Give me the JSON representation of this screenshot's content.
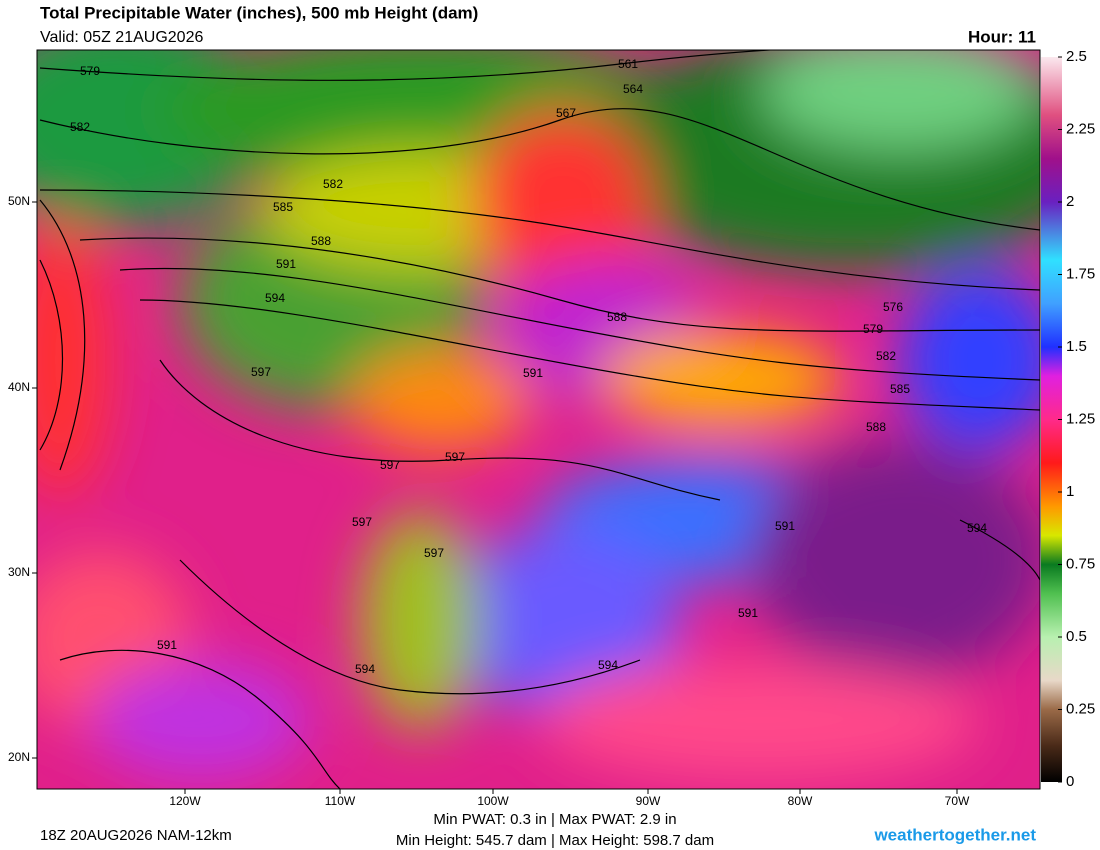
{
  "header": {
    "title": "Total Precipitable Water (inches), 500 mb Height (dam)",
    "valid": "Valid: 05Z 21AUG2026",
    "hour": "Hour: 11"
  },
  "colorbar": {
    "ticks": [
      0,
      0.25,
      0.5,
      0.75,
      1,
      1.25,
      1.5,
      1.75,
      2,
      2.25,
      2.5
    ]
  },
  "longitude_labels": [
    "120W",
    "110W",
    "100W",
    "90W",
    "80W",
    "70W"
  ],
  "latitude_labels": [
    "50N",
    "40N",
    "30N",
    "20N"
  ],
  "contour_labels": [
    "579",
    "582",
    "582",
    "585",
    "588",
    "591",
    "594",
    "597",
    "597",
    "597",
    "597",
    "597",
    "561",
    "564",
    "567",
    "588",
    "591",
    "576",
    "579",
    "582",
    "585",
    "588",
    "591",
    "591",
    "594",
    "594",
    "594",
    "591"
  ],
  "footer": {
    "run": "18Z 20AUG2026 NAM-12km",
    "pwat": "Min PWAT:   0.3 in | Max PWAT:   2.9 in",
    "height": "Min Height: 545.7 dam | Max Height: 598.7 dam",
    "site": "weathertogether.net"
  }
}
